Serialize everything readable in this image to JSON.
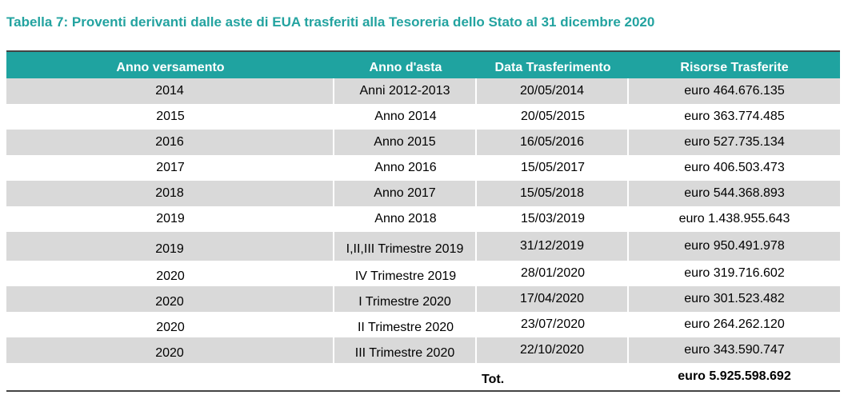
{
  "title": "Tabella 7: Proventi derivanti dalle aste di EUA trasferiti alla Tesoreria dello Stato al 31 dicembre 2020",
  "columns": [
    "Anno versamento",
    "Anno d'asta",
    "Data Trasferimento",
    "Risorse Trasferite"
  ],
  "rows": [
    [
      "2014",
      "Anni 2012-2013",
      "20/05/2014",
      "euro 464.676.135"
    ],
    [
      "2015",
      "Anno 2014",
      "20/05/2015",
      "euro 363.774.485"
    ],
    [
      "2016",
      "Anno 2015",
      "16/05/2016",
      "euro 527.735.134"
    ],
    [
      "2017",
      "Anno 2016",
      "15/05/2017",
      "euro 406.503.473"
    ],
    [
      "2018",
      "Anno 2017",
      "15/05/2018",
      "euro 544.368.893"
    ],
    [
      "2019",
      "Anno 2018",
      "15/03/2019",
      "euro 1.438.955.643"
    ],
    [
      "2019",
      "I,II,III Trimestre 2019",
      "31/12/2019",
      "euro 950.491.978"
    ],
    [
      "2020",
      "IV Trimestre 2019",
      "28/01/2020",
      "euro 319.716.602"
    ],
    [
      "2020",
      "I Trimestre 2020",
      "17/04/2020",
      "euro 301.523.482"
    ],
    [
      "2020",
      "II Trimestre 2020",
      "23/07/2020",
      "euro 264.262.120"
    ],
    [
      "2020",
      "III Trimestre 2020",
      "22/10/2020",
      "euro 343.590.747"
    ]
  ],
  "total": {
    "label": "Tot.",
    "value": "euro 5.925.598.692"
  },
  "colors": {
    "title": "#23a3a0",
    "header_bg": "#1fa3a0",
    "stripe": "#d9d9d9"
  }
}
